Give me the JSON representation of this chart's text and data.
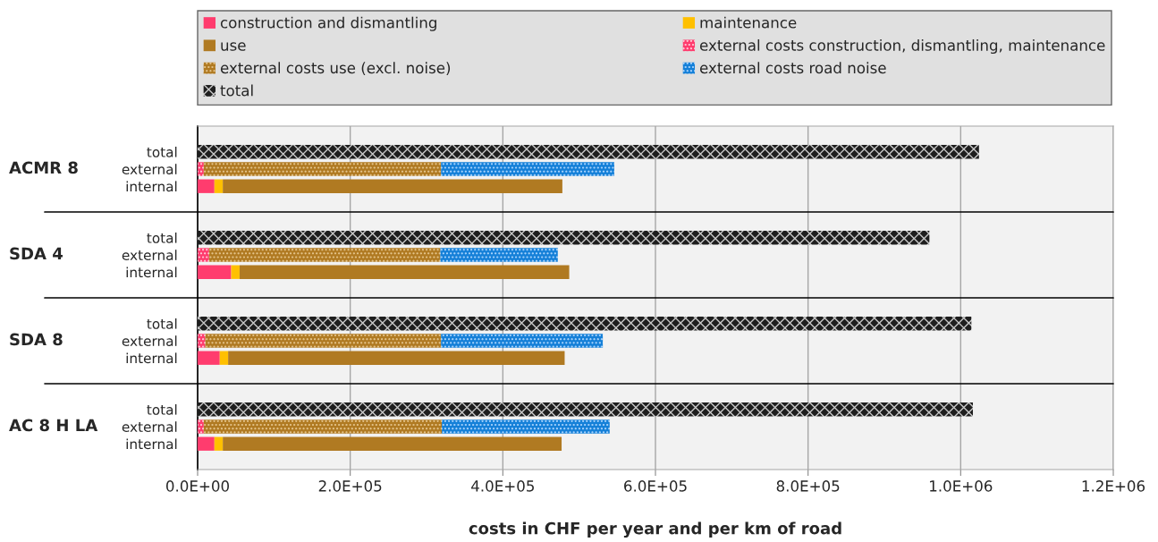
{
  "chart_data": {
    "type": "bar",
    "orientation": "horizontal",
    "stacked": true,
    "categories": [
      null,
      "total",
      "external",
      "internal",
      null,
      null,
      "total",
      "external",
      "internal",
      null,
      null,
      "total",
      "external",
      "internal",
      null,
      null,
      "total",
      "external",
      "internal",
      null
    ],
    "annotations": [
      "ACMR 8",
      "SDA 4",
      "SDA 8",
      "AC 8 H LA"
    ],
    "xlabel": "costs in CHF per year and per km of road",
    "xlim": [
      0,
      1200000
    ],
    "xticks": [
      {
        "value": 0,
        "label": "0.0E+00"
      },
      {
        "value": 200000,
        "label": "2.0E+05"
      },
      {
        "value": 400000,
        "label": "4.0E+05"
      },
      {
        "value": 600000,
        "label": "6.0E+05"
      },
      {
        "value": 800000,
        "label": "8.0E+05"
      },
      {
        "value": 1000000,
        "label": "1.0E+06"
      },
      {
        "value": 1200000,
        "label": "1.2E+06"
      }
    ],
    "grid": "x",
    "legend": "top",
    "series": [
      {
        "name": "construction and dismantling",
        "color": "#ff3c6e",
        "values": [
          null,
          null,
          null,
          22000,
          null,
          null,
          null,
          null,
          44000,
          null,
          null,
          null,
          null,
          29000,
          null,
          null,
          null,
          null,
          22000,
          null
        ]
      },
      {
        "name": "maintenance",
        "color": "#ffc000",
        "values": [
          null,
          null,
          null,
          11000,
          null,
          null,
          null,
          null,
          11000,
          null,
          null,
          null,
          null,
          11000,
          null,
          null,
          null,
          null,
          11000,
          null
        ]
      },
      {
        "name": "use",
        "color": "#b07a22",
        "values": [
          null,
          null,
          null,
          445000,
          null,
          null,
          null,
          null,
          432000,
          null,
          null,
          null,
          null,
          441000,
          null,
          null,
          null,
          null,
          444000,
          null
        ]
      },
      {
        "name": "external costs construction, dismantling, maintenance",
        "color": "#ff3c6e",
        "values": [
          null,
          null,
          8000,
          null,
          null,
          null,
          null,
          15000,
          null,
          null,
          null,
          null,
          10000,
          null,
          null,
          null,
          null,
          8000,
          null,
          null
        ]
      },
      {
        "name": "external costs use (excl. noise)",
        "color": "#b07a22",
        "values": [
          null,
          null,
          311000,
          null,
          null,
          null,
          null,
          303000,
          null,
          null,
          null,
          null,
          309000,
          null,
          null,
          null,
          null,
          312000,
          null,
          null
        ]
      },
      {
        "name": "external costs road noise",
        "color": "#1580d8",
        "values": [
          null,
          null,
          227000,
          null,
          null,
          null,
          null,
          154000,
          null,
          null,
          null,
          null,
          212000,
          null,
          null,
          null,
          null,
          220000,
          null,
          null
        ]
      },
      {
        "name": "total",
        "color": "#1e1e1e",
        "values": [
          null,
          1024000,
          null,
          null,
          null,
          null,
          959000,
          null,
          null,
          null,
          null,
          1014000,
          null,
          null,
          null,
          null,
          1016000,
          null,
          null,
          null
        ]
      }
    ]
  }
}
